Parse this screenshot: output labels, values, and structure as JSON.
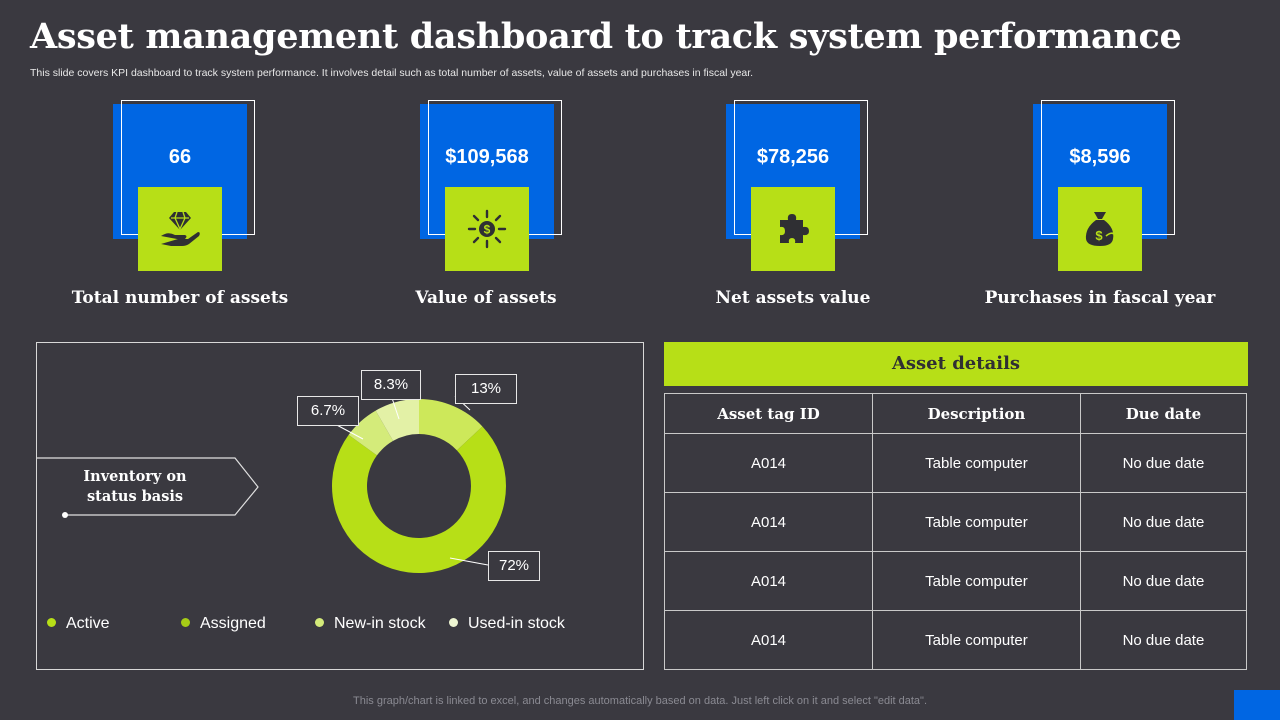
{
  "page": {
    "title": "Asset management dashboard to track system performance",
    "subtitle": "This slide covers KPI dashboard to track system performance. It involves detail such as total number of assets, value of assets and purchases in fiscal year.",
    "footer": "This graph/chart is linked to excel,  and changes automatically based on data. Just left click on it and select \"edit data\"."
  },
  "colors": {
    "background": "#3a3940",
    "blue": "#0066e3",
    "lime": "#b7df17"
  },
  "kpis": [
    {
      "value": "66",
      "label": "Total number of assets",
      "icon": "diamond-hand-icon"
    },
    {
      "value": "$109,568",
      "label": "Value of assets",
      "icon": "sun-dollar-icon"
    },
    {
      "value": "$78,256",
      "label": "Net assets value",
      "icon": "puzzle-icon"
    },
    {
      "value": "$8,596",
      "label": "Purchases in fascal year",
      "icon": "money-bag-icon"
    }
  ],
  "inventory": {
    "label": "Inventory on status basis",
    "label_line1": "Inventory on",
    "label_line2": "status basis"
  },
  "chart_data": {
    "type": "pie",
    "categories": [
      "Active",
      "Assigned",
      "New-in stock",
      "Used-in stock"
    ],
    "values": [
      72,
      13,
      8.3,
      6.7
    ],
    "labels": [
      "72%",
      "13%",
      "8.3%",
      "6.7%"
    ],
    "colors": [
      "#b7df17",
      "#cde85a",
      "#e3f1a6",
      "#d4eb7a"
    ],
    "legend": "bottom"
  },
  "legend": [
    {
      "label": "Active",
      "color": "#b7df17"
    },
    {
      "label": "Assigned",
      "color": "#a6cc16"
    },
    {
      "label": "New-in stock",
      "color": "#d4eb7a"
    },
    {
      "label": "Used-in stock",
      "color": "#eef6d2"
    }
  ],
  "table": {
    "title": "Asset details",
    "columns": [
      "Asset tag ID",
      "Description",
      "Due date"
    ],
    "rows": [
      [
        "A014",
        "Table computer",
        "No due date"
      ],
      [
        "A014",
        "Table computer",
        "No due date"
      ],
      [
        "A014",
        "Table computer",
        "No due date"
      ],
      [
        "A014",
        "Table computer",
        "No due date"
      ]
    ]
  }
}
